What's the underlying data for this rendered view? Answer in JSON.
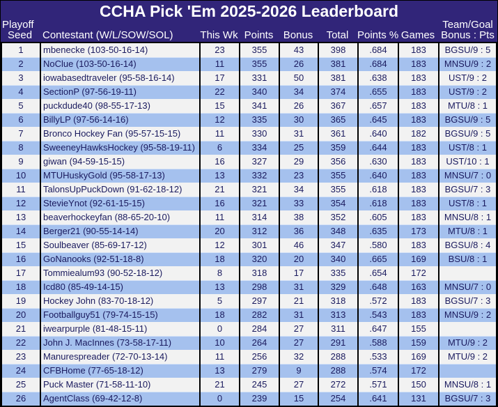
{
  "header": {
    "title": "CCHA Pick 'Em 2025-2026 Leaderboard",
    "columns": [
      {
        "key": "seed",
        "lines": [
          "Playoff",
          "Seed"
        ]
      },
      {
        "key": "contestant",
        "lines": [
          "Contestant (W/L/SOW/SOL)"
        ]
      },
      {
        "key": "this_wk",
        "lines": [
          "This Wk"
        ]
      },
      {
        "key": "points",
        "lines": [
          "Points"
        ]
      },
      {
        "key": "bonus",
        "lines": [
          "Bonus"
        ]
      },
      {
        "key": "total",
        "lines": [
          "Total"
        ]
      },
      {
        "key": "points_pct",
        "lines": [
          "Points %"
        ]
      },
      {
        "key": "games",
        "lines": [
          "Games"
        ]
      },
      {
        "key": "team_goal",
        "lines": [
          "Team/Goal",
          "Bonus : Pts"
        ]
      }
    ]
  },
  "colors": {
    "header_bg": "#312579",
    "header_text": "#ffffff",
    "row_odd": "#f2f2f2",
    "row_even": "#a5c1ee",
    "cell_text": "#1a1a5e",
    "grid": "#000000"
  },
  "rows": [
    {
      "seed": "1",
      "contestant": "mbenecke (103-50-16-14)",
      "this_wk": "23",
      "points": "355",
      "bonus": "43",
      "total": "398",
      "points_pct": ".684",
      "games": "183",
      "team_goal": "BGSU/9 : 5"
    },
    {
      "seed": "2",
      "contestant": "NoClue (103-50-16-14)",
      "this_wk": "11",
      "points": "355",
      "bonus": "26",
      "total": "381",
      "points_pct": ".684",
      "games": "183",
      "team_goal": "MNSU/9 : 2"
    },
    {
      "seed": "3",
      "contestant": "iowabasedtraveler (95-58-16-14)",
      "this_wk": "17",
      "points": "331",
      "bonus": "50",
      "total": "381",
      "points_pct": ".638",
      "games": "183",
      "team_goal": "UST/9 : 2"
    },
    {
      "seed": "4",
      "contestant": "SectionP (97-56-19-11)",
      "this_wk": "22",
      "points": "340",
      "bonus": "34",
      "total": "374",
      "points_pct": ".655",
      "games": "183",
      "team_goal": "UST/9 : 2"
    },
    {
      "seed": "5",
      "contestant": "puckdude40 (98-55-17-13)",
      "this_wk": "15",
      "points": "341",
      "bonus": "26",
      "total": "367",
      "points_pct": ".657",
      "games": "183",
      "team_goal": "MTU/8 : 1"
    },
    {
      "seed": "6",
      "contestant": "BillyLP (97-56-14-16)",
      "this_wk": "12",
      "points": "335",
      "bonus": "30",
      "total": "365",
      "points_pct": ".645",
      "games": "183",
      "team_goal": "BGSU/9 : 5"
    },
    {
      "seed": "7",
      "contestant": "Bronco Hockey Fan (95-57-15-15)",
      "this_wk": "11",
      "points": "330",
      "bonus": "31",
      "total": "361",
      "points_pct": ".640",
      "games": "182",
      "team_goal": "BGSU/9 : 5"
    },
    {
      "seed": "8",
      "contestant": "SweeneyHawksHockey (95-58-19-11)",
      "this_wk": "6",
      "points": "334",
      "bonus": "25",
      "total": "359",
      "points_pct": ".644",
      "games": "183",
      "team_goal": "UST/8 : 1"
    },
    {
      "seed": "9",
      "contestant": "giwan (94-59-15-15)",
      "this_wk": "16",
      "points": "327",
      "bonus": "29",
      "total": "356",
      "points_pct": ".630",
      "games": "183",
      "team_goal": "UST/10 : 1"
    },
    {
      "seed": "10",
      "contestant": "MTUHuskyGold (95-58-17-13)",
      "this_wk": "13",
      "points": "332",
      "bonus": "23",
      "total": "355",
      "points_pct": ".640",
      "games": "183",
      "team_goal": "MNSU/7 : 0"
    },
    {
      "seed": "11",
      "contestant": "TalonsUpPuckDown (91-62-18-12)",
      "this_wk": "21",
      "points": "321",
      "bonus": "34",
      "total": "355",
      "points_pct": ".618",
      "games": "183",
      "team_goal": "BGSU/7 : 3"
    },
    {
      "seed": "12",
      "contestant": "StevieYnot (92-61-15-15)",
      "this_wk": "16",
      "points": "321",
      "bonus": "33",
      "total": "354",
      "points_pct": ".618",
      "games": "183",
      "team_goal": "UST/8 : 1"
    },
    {
      "seed": "13",
      "contestant": "beaverhockeyfan (88-65-20-10)",
      "this_wk": "11",
      "points": "314",
      "bonus": "38",
      "total": "352",
      "points_pct": ".605",
      "games": "183",
      "team_goal": "MNSU/8 : 1"
    },
    {
      "seed": "14",
      "contestant": "Berger21 (90-55-14-14)",
      "this_wk": "20",
      "points": "312",
      "bonus": "36",
      "total": "348",
      "points_pct": ".635",
      "games": "173",
      "team_goal": "MTU/8 : 1"
    },
    {
      "seed": "15",
      "contestant": "Soulbeaver (85-69-17-12)",
      "this_wk": "12",
      "points": "301",
      "bonus": "46",
      "total": "347",
      "points_pct": ".580",
      "games": "183",
      "team_goal": "BGSU/8 : 4"
    },
    {
      "seed": "16",
      "contestant": "GoNanooks (92-51-18-8)",
      "this_wk": "18",
      "points": "320",
      "bonus": "20",
      "total": "340",
      "points_pct": ".665",
      "games": "169",
      "team_goal": "BSU/8 : 1"
    },
    {
      "seed": "17",
      "contestant": "Tommiealum93 (90-52-18-12)",
      "this_wk": "8",
      "points": "318",
      "bonus": "17",
      "total": "335",
      "points_pct": ".654",
      "games": "172",
      "team_goal": ""
    },
    {
      "seed": "18",
      "contestant": "Icd80 (85-49-14-15)",
      "this_wk": "13",
      "points": "298",
      "bonus": "31",
      "total": "329",
      "points_pct": ".648",
      "games": "163",
      "team_goal": "MNSU/7 : 0"
    },
    {
      "seed": "19",
      "contestant": "Hockey John (83-70-18-12)",
      "this_wk": "5",
      "points": "297",
      "bonus": "21",
      "total": "318",
      "points_pct": ".572",
      "games": "183",
      "team_goal": "BGSU/7 : 3"
    },
    {
      "seed": "20",
      "contestant": "Footballguy51 (79-74-15-15)",
      "this_wk": "18",
      "points": "282",
      "bonus": "31",
      "total": "313",
      "points_pct": ".543",
      "games": "183",
      "team_goal": "MNSU/9 : 2"
    },
    {
      "seed": "21",
      "contestant": "iwearpurple (81-48-15-11)",
      "this_wk": "0",
      "points": "284",
      "bonus": "27",
      "total": "311",
      "points_pct": ".647",
      "games": "155",
      "team_goal": ""
    },
    {
      "seed": "22",
      "contestant": "John J. MacInnes (73-58-17-11)",
      "this_wk": "10",
      "points": "264",
      "bonus": "27",
      "total": "291",
      "points_pct": ".588",
      "games": "159",
      "team_goal": "MTU/9 : 2"
    },
    {
      "seed": "23",
      "contestant": "Manurespreader (72-70-13-14)",
      "this_wk": "11",
      "points": "256",
      "bonus": "32",
      "total": "288",
      "points_pct": ".533",
      "games": "169",
      "team_goal": "MTU/9 : 2"
    },
    {
      "seed": "24",
      "contestant": "CFBHome (77-65-18-12)",
      "this_wk": "13",
      "points": "279",
      "bonus": "9",
      "total": "288",
      "points_pct": ".574",
      "games": "172",
      "team_goal": ""
    },
    {
      "seed": "25",
      "contestant": "Puck Master (71-58-11-10)",
      "this_wk": "21",
      "points": "245",
      "bonus": "27",
      "total": "272",
      "points_pct": ".571",
      "games": "150",
      "team_goal": "MNSU/8 : 1"
    },
    {
      "seed": "26",
      "contestant": "AgentClass (69-42-12-8)",
      "this_wk": "0",
      "points": "239",
      "bonus": "15",
      "total": "254",
      "points_pct": ".641",
      "games": "131",
      "team_goal": "BGSU/7 : 3"
    }
  ]
}
